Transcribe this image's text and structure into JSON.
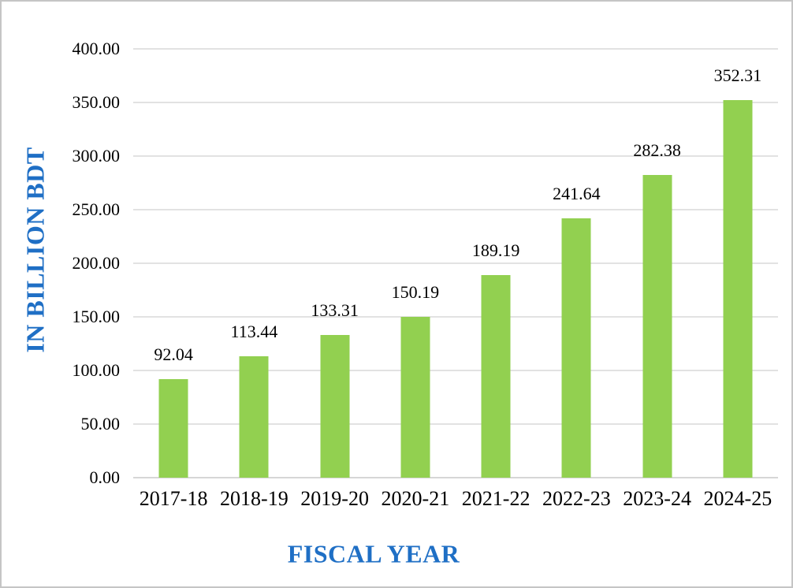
{
  "chart_data": {
    "type": "bar",
    "title": "",
    "categories": [
      "2017-18",
      "2018-19",
      "2019-20",
      "2020-21",
      "2021-22",
      "2022-23",
      "2023-24",
      "2024-25"
    ],
    "values": [
      92.04,
      113.44,
      133.31,
      150.19,
      189.19,
      241.64,
      282.38,
      352.31
    ],
    "data_labels": [
      "92.04",
      "113.44",
      "133.31",
      "150.19",
      "189.19",
      "241.64",
      "282.38",
      "352.31"
    ],
    "xlabel": "FISCAL YEAR",
    "ylabel": "IN BILLION BDT",
    "ylim": [
      0,
      400
    ],
    "ytick_step": 50,
    "ytick_labels": [
      "0.00",
      "50.00",
      "100.00",
      "150.00",
      "200.00",
      "250.00",
      "300.00",
      "350.00",
      "400.00"
    ],
    "grid": true,
    "legend": "none",
    "colors": {
      "bar": "#92D050",
      "axis_title": "#1F6FC5",
      "gridline": "#E2E2E2",
      "axis_line": "#D6D6D6",
      "text": "#000000"
    }
  }
}
